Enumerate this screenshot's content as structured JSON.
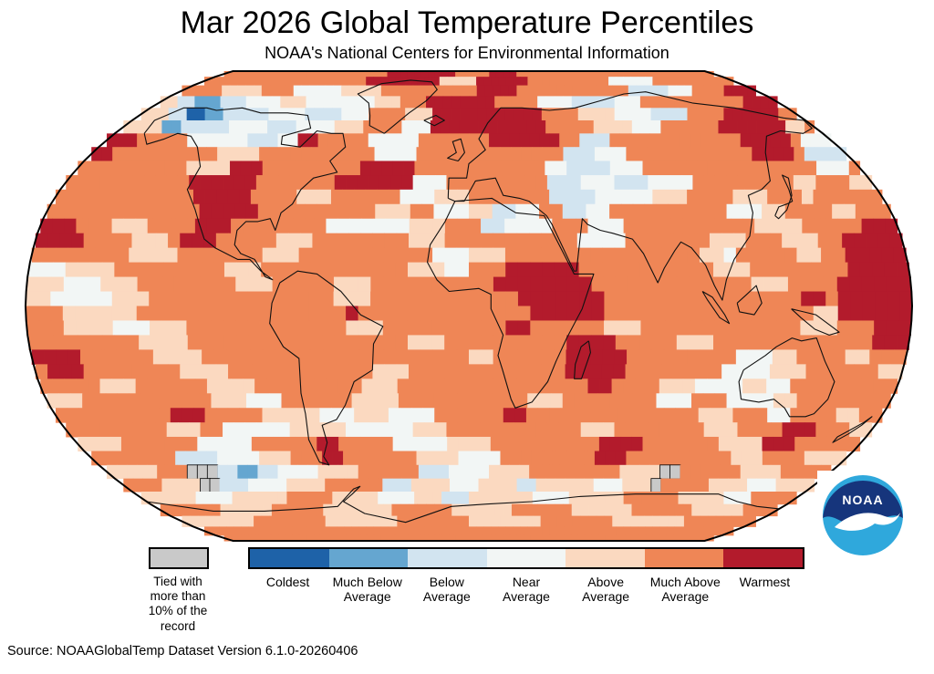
{
  "header": {
    "title": "Mar 2026 Global Temperature Percentiles",
    "subtitle": "NOAA's National Centers for Environmental Information"
  },
  "footer": {
    "source": "Source: NOAAGlobalTemp Dataset Version 6.1.0-20260406"
  },
  "legend": {
    "tied_label": "Tied with\nmore than\n10% of the\nrecord",
    "tied_color": "#c9c9c9",
    "categories": [
      {
        "key": "C",
        "label": "Coldest",
        "color": "#1e62a8"
      },
      {
        "key": "M",
        "label": "Much Below\nAverage",
        "color": "#65a6d0"
      },
      {
        "key": "B",
        "label": "Below\nAverage",
        "color": "#d2e4f0"
      },
      {
        "key": "N",
        "label": "Near\nAverage",
        "color": "#f2f6f5"
      },
      {
        "key": "A",
        "label": "Above\nAverage",
        "color": "#fbd9c0"
      },
      {
        "key": "U",
        "label": "Much Above\nAverage",
        "color": "#ef8656"
      },
      {
        "key": "W",
        "label": "Warmest",
        "color": "#b31b2c"
      }
    ]
  },
  "noaa_logo": {
    "text": "NOAA",
    "dark_blue": "#16357c",
    "light_blue": "#2fa8dc"
  },
  "chart_data": {
    "type": "heatmap",
    "title": "Mar 2026 Global Temperature Percentiles",
    "subtitle": "NOAA's National Centers for Environmental Information",
    "projection": "robinson",
    "grid_deg": 5,
    "cols": 72,
    "rows_order": "north-to-south, 90N to 90S; each run token = classKey+count, 72 cells per row; lon -180 to 180",
    "class_keys": {
      "C": "Coldest",
      "M": "Much Below Average",
      "B": "Below Average",
      "N": "Near Average",
      "A": "Above Average",
      "U": "Much Above Average",
      "W": "Warmest",
      "G": "Tied with more than 10% of the record"
    },
    "rows": [
      "U24 W10 U5 W4 U29",
      "U22 W10 A5 W7 U11 N6 U11",
      "U5 A5 U4 N6 A5 U12 W5 U14 B5 N3 U4 W4",
      "A2 B2 M3 B3 N4 A3 N8 A3 U3 W8 U5 N4 B5 N3 U12 W4",
      "A3 B2 C2 M2 B5 N4 B4 N3 U4 A3 W12 U4 A4 N4 B4 U4 W6 U2",
      "A4 M2 B5 N4 B3 N4 A3 U4 N3 W12 U5 A4 N3 U6 W7 A2 U1",
      "W3 U5 N6 B3 N2 W2 U5 N5 U7 W7 U2 B3 U13 W5 U1 N3",
      "W2 U10 A4 U11 N4 U14 B3 N3 U12 W4 U1 B4",
      "U10 A4 W3 U9 W5 U12 N2 B4 N3 U16 N3 U1",
      "U11 W6 U7 W7 N3 U9 B3 N3 B3 N4 U9 A2 U3 A2",
      "U12 W5 U4 A3 U6 N3 A3 U7 B4 N5 A3 U4 A3 U3 A1 U6",
      "U13 W5 U10 A3 U2 N3 A2 B2 N2 U2 B2 N2 U10 N3 A2 U4 A2 U3",
      "W3 U3 A3 U4 W3 U8 N7 A3 U3 B2 N4 U3 N3 U11 A4 U5 W3",
      "W4 U4 A3 U1 W3 U5 A3 U8 A3 U11 N4 U7 A3 U3 A3 U2 W5",
      "U8 A4 U7 A3 U11 N3 A3 U16 A2 N1 U5 A2 U2 W5",
      "N3 A4 U9 A3 U12 A3 N2 U3 W6 U11 A3 U8 W5",
      "A3 N3 A3 U8 A3 U5 A3 U10 W8 U13 A3 U4 W6",
      "A2 N5 A3 U15 A3 U12 W7 U16 W2 U1 W6",
      "U3 A6 U17 W1 U14 W6 U17 A2 W6",
      "U3 A4 N3 A3 U13 A3 U10 W2 U6 A3 U13 A3 U3 W3",
      "U9 A4 U18 A3 U10 W4 U5 A3 U13 W3",
      "W4 U6 A4 U22 A2 U6 W5 U9 N3 A2 U4 A2 U3",
      "U1 W3 U8 A4 U12 A3 U13 W5 U8 N4 A3 U6 A2",
      "U5 A3 U6 A4 U9 A3 U16 W2 U4 A3 N4 A2 N2 U9",
      "A3 U11 A3 N3 U6 A4 U11 A3 U8 N3 U3 N4 A2 U8",
      "U10 W3 U5 A5 N3 A3 N4 U6 W2 U15 A3 U3 N2 U4 A2 U2",
      "U9 A3 U2 N6 A5 N6 A3 U12 A3 U8 A3 U4 W3 U3 A2",
      "A4 U7 N5 U6 W2 U5 N5 A4 U10 W4 U7 A4 W3 U6",
      "U8 B4 N4 A3 U3 W2 U7 A4 N4 U9 W3 U10 A3 U4 A4",
      "A5 U3 G3 B2 M2 B2 N4 A4 U6 B3 N4 A4 U9 A4 G2 U6 A4 U5",
      "U4 A4 G2 B3 N4 A4 U6 B3 A4 N3 A4 B2 A6 N3 A3 G1 U5 A4 N3 A4",
      "A6 N4 A6 U5 A5 N4 A3 B3 A7 N4 A6 U6 A5 N3 U5",
      "U7 A6 U6 A8 U7 A7 U7 A7 U7 A6 U4",
      "A9 U9 A9 U9 A9 U9 A9 U9",
      "U72",
      "U72"
    ]
  }
}
